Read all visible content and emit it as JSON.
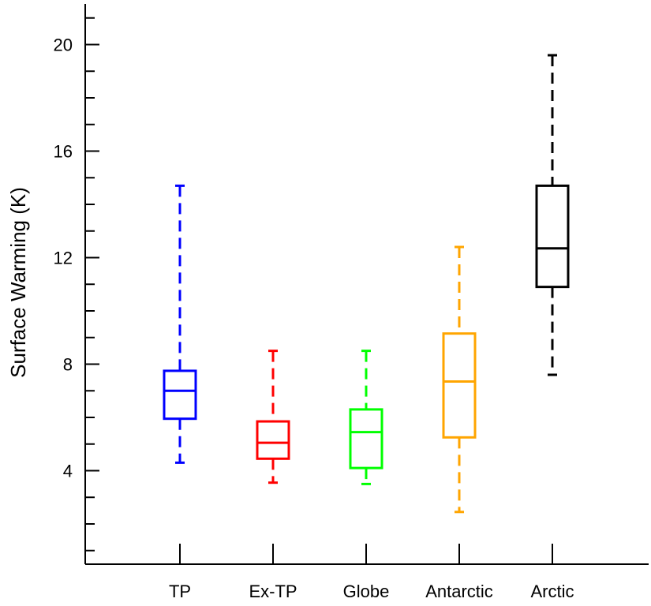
{
  "chart_data": {
    "type": "box",
    "title": "",
    "xlabel": "",
    "ylabel": "Surface Warming (K)",
    "ylim": [
      0,
      21
    ],
    "yticks": [
      4,
      8,
      12,
      16,
      20
    ],
    "categories": [
      "TP",
      "Ex-TP",
      "Globe",
      "Antarctic",
      "Arctic"
    ],
    "boxes": [
      {
        "category": "TP",
        "color": "#0000ff",
        "min": 4.3,
        "q1": 5.95,
        "median": 7.0,
        "q3": 7.75,
        "max": 14.7
      },
      {
        "category": "Ex-TP",
        "color": "#ff0000",
        "min": 3.55,
        "q1": 4.45,
        "median": 5.05,
        "q3": 5.85,
        "max": 8.5
      },
      {
        "category": "Globe",
        "color": "#00ff00",
        "min": 3.5,
        "q1": 4.1,
        "median": 5.45,
        "q3": 6.3,
        "max": 8.5
      },
      {
        "category": "Antarctic",
        "color": "#ffa500",
        "min": 2.45,
        "q1": 5.25,
        "median": 7.35,
        "q3": 9.15,
        "max": 12.4
      },
      {
        "category": "Arctic",
        "color": "#000000",
        "min": 7.6,
        "q1": 10.9,
        "median": 12.35,
        "q3": 14.7,
        "max": 19.6
      }
    ]
  }
}
